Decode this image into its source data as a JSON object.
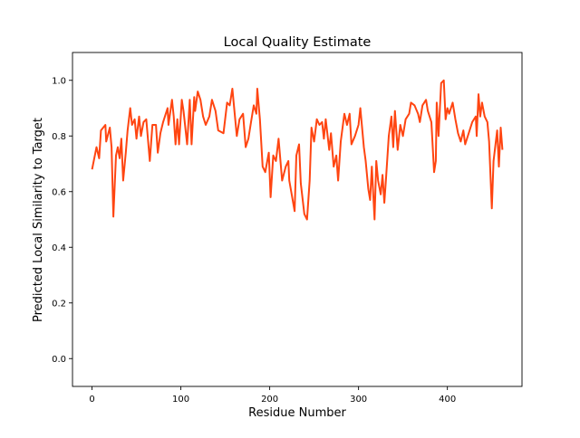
{
  "chart_data": {
    "type": "line",
    "title": "Local Quality Estimate",
    "xlabel": "Residue Number",
    "ylabel": "Predicted Local Similarity to Target",
    "xlim": [
      -22,
      484
    ],
    "ylim": [
      -0.1,
      1.1
    ],
    "xticks": [
      0,
      100,
      200,
      300,
      400
    ],
    "yticks": [
      0.0,
      0.2,
      0.4,
      0.6,
      0.8,
      1.0
    ],
    "ytick_labels": [
      "0.0",
      "0.2",
      "0.4",
      "0.6",
      "0.8",
      "1.0"
    ],
    "grid": false,
    "series": [
      {
        "name": "local quality",
        "color": "#ff4511",
        "x": [
          0,
          5,
          8,
          10,
          15,
          16,
          20,
          22,
          24,
          27,
          29,
          31,
          33,
          35,
          38,
          40,
          43,
          45,
          48,
          50,
          53,
          55,
          58,
          61,
          65,
          68,
          72,
          74,
          77,
          80,
          85,
          86,
          90,
          92,
          94,
          96,
          98,
          101,
          103,
          107,
          110,
          112,
          115,
          116,
          119,
          122,
          125,
          128,
          132,
          135,
          139,
          142,
          148,
          152,
          155,
          158,
          160,
          163,
          166,
          170,
          173,
          176,
          179,
          182,
          185,
          186,
          189,
          192,
          195,
          199,
          201,
          204,
          207,
          210,
          214,
          218,
          221,
          222,
          228,
          230,
          233,
          235,
          239,
          242,
          245,
          247,
          250,
          253,
          256,
          259,
          261,
          263,
          267,
          269,
          272,
          275,
          277,
          280,
          284,
          287,
          290,
          292,
          296,
          300,
          302,
          306,
          308,
          311,
          313,
          315,
          318,
          320,
          322,
          325,
          327,
          329,
          331,
          334,
          337,
          339,
          341,
          344,
          347,
          350,
          353,
          357,
          359,
          363,
          367,
          369,
          372,
          376,
          378,
          382,
          385,
          387,
          388,
          390,
          393,
          396,
          398,
          400,
          402,
          406,
          409,
          412,
          415,
          418,
          420,
          425,
          428,
          432,
          433,
          435,
          437,
          439,
          442,
          445,
          447,
          450,
          452,
          456,
          458,
          460,
          462
        ],
        "y": [
          0.68,
          0.76,
          0.72,
          0.82,
          0.84,
          0.78,
          0.83,
          0.76,
          0.51,
          0.73,
          0.76,
          0.72,
          0.79,
          0.64,
          0.74,
          0.82,
          0.9,
          0.84,
          0.86,
          0.79,
          0.87,
          0.8,
          0.85,
          0.86,
          0.71,
          0.84,
          0.84,
          0.74,
          0.81,
          0.85,
          0.9,
          0.84,
          0.93,
          0.87,
          0.77,
          0.86,
          0.77,
          0.93,
          0.89,
          0.77,
          0.93,
          0.77,
          0.94,
          0.89,
          0.96,
          0.93,
          0.87,
          0.84,
          0.87,
          0.93,
          0.89,
          0.82,
          0.81,
          0.92,
          0.91,
          0.97,
          0.9,
          0.8,
          0.86,
          0.88,
          0.76,
          0.79,
          0.85,
          0.91,
          0.88,
          0.97,
          0.86,
          0.69,
          0.67,
          0.74,
          0.58,
          0.73,
          0.71,
          0.79,
          0.64,
          0.69,
          0.71,
          0.64,
          0.53,
          0.73,
          0.77,
          0.63,
          0.52,
          0.5,
          0.64,
          0.83,
          0.78,
          0.86,
          0.84,
          0.85,
          0.79,
          0.86,
          0.75,
          0.81,
          0.69,
          0.73,
          0.64,
          0.78,
          0.88,
          0.84,
          0.88,
          0.77,
          0.8,
          0.84,
          0.9,
          0.76,
          0.71,
          0.61,
          0.57,
          0.69,
          0.5,
          0.71,
          0.64,
          0.59,
          0.66,
          0.56,
          0.65,
          0.8,
          0.87,
          0.76,
          0.89,
          0.75,
          0.84,
          0.8,
          0.86,
          0.88,
          0.92,
          0.91,
          0.88,
          0.85,
          0.91,
          0.93,
          0.89,
          0.85,
          0.67,
          0.71,
          0.92,
          0.8,
          0.99,
          1.0,
          0.86,
          0.9,
          0.88,
          0.92,
          0.86,
          0.81,
          0.78,
          0.82,
          0.77,
          0.82,
          0.85,
          0.87,
          0.8,
          0.95,
          0.87,
          0.92,
          0.87,
          0.85,
          0.78,
          0.54,
          0.71,
          0.82,
          0.69,
          0.83,
          0.75
        ]
      }
    ]
  }
}
